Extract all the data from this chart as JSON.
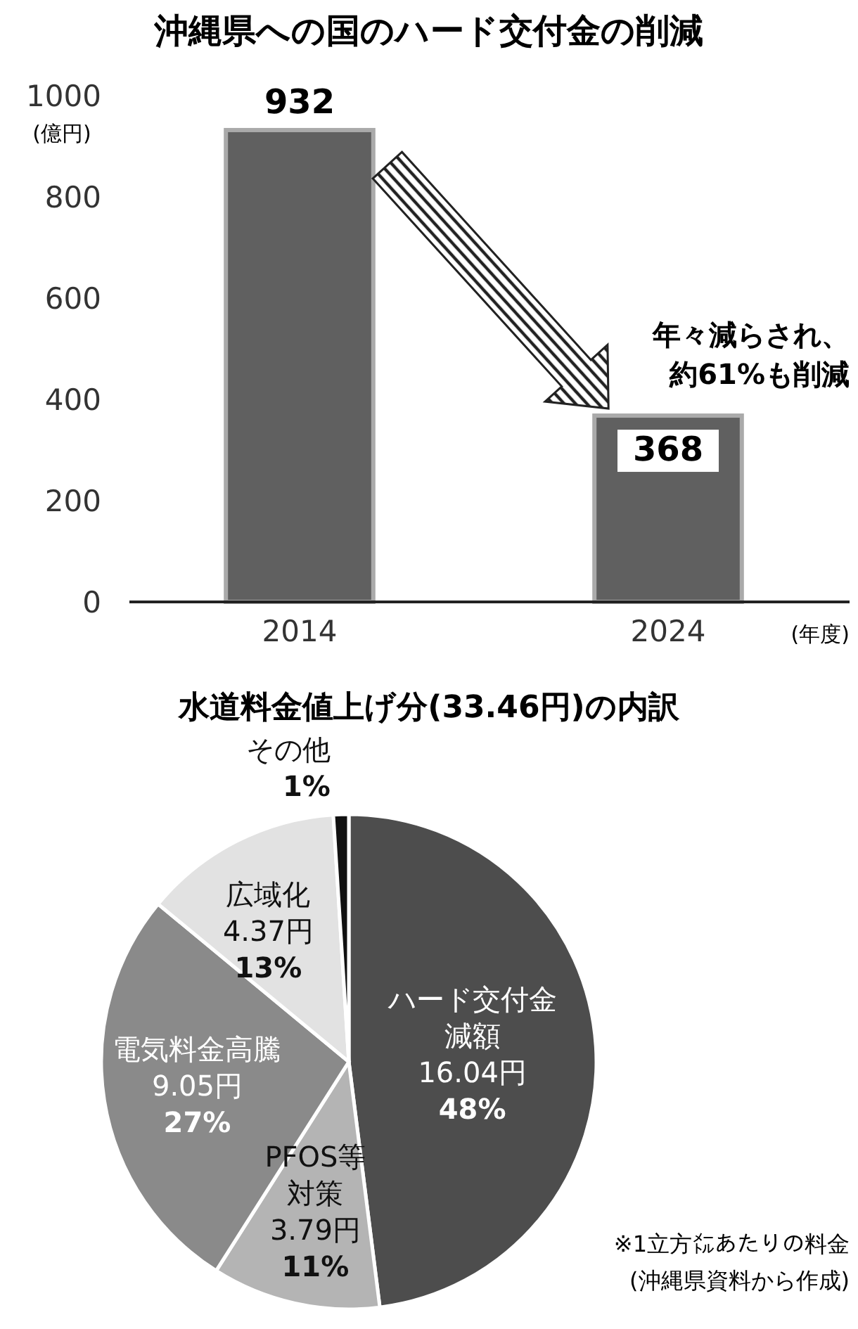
{
  "chart_data": [
    {
      "type": "bar",
      "title": "沖縄県への国のハード交付金の削減",
      "categories": [
        "2014",
        "2024"
      ],
      "values": [
        932,
        368
      ],
      "color": "#606060",
      "ylim": [
        0,
        1000
      ],
      "yticks": [
        0,
        200,
        400,
        600,
        800,
        1000
      ],
      "ylabel": "(億円)",
      "xlabel": "(年度)",
      "data_labels": true,
      "annotations": [
        "年々減らされ、約61%も削減"
      ]
    },
    {
      "type": "pie",
      "title": "水道料金値上げ分(33.46円)の内訳",
      "categories": [
        "ハード交付金減額",
        "PFOS等対策",
        "電気料金高騰",
        "広域化",
        "その他"
      ],
      "values": [
        48,
        11,
        27,
        13,
        1
      ],
      "colors": [
        "#4d4d4d",
        "#b4b4b4",
        "#8a8a8a",
        "#e2e2e2",
        "#111111"
      ],
      "value_labels": [
        "16.04円\n48%",
        "3.79円\n11%",
        "9.05円\n27%",
        "4.37円\n13%",
        "1%"
      ],
      "annotations": [
        "※1立方㍍あたりの料金",
        "(沖縄県資料から作成)"
      ]
    }
  ]
}
